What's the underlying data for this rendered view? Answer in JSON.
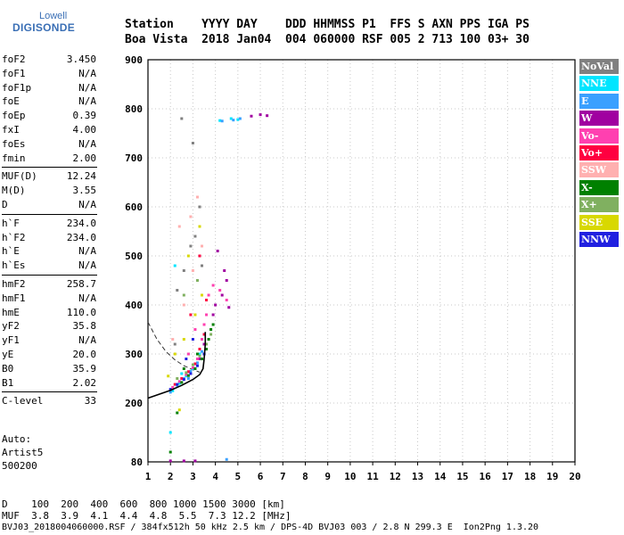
{
  "logo": {
    "line1": "Lowell",
    "line2": "DIGISONDE"
  },
  "header": {
    "line1": "Station    YYYY DAY    DDD HHMMSS P1  FFS S AXN PPS IGA PS",
    "line2": "Boa Vista  2018 Jan04  004 060000 RSF 005 2 713 100 03+ 30"
  },
  "params_group1": [
    {
      "name": "foF2",
      "value": "3.450"
    },
    {
      "name": "foF1",
      "value": "N/A"
    },
    {
      "name": "foF1p",
      "value": "N/A"
    },
    {
      "name": "foE",
      "value": "N/A"
    },
    {
      "name": "foEp",
      "value": "0.39"
    },
    {
      "name": "fxI",
      "value": "4.00"
    },
    {
      "name": "foEs",
      "value": "N/A"
    },
    {
      "name": "fmin",
      "value": "2.00"
    }
  ],
  "params_group2": [
    {
      "name": "MUF(D)",
      "value": "12.24"
    },
    {
      "name": "M(D)",
      "value": "3.55"
    },
    {
      "name": "D",
      "value": "N/A"
    }
  ],
  "params_group3": [
    {
      "name": "h`F",
      "value": "234.0"
    },
    {
      "name": "h`F2",
      "value": "234.0"
    },
    {
      "name": "h`E",
      "value": "N/A"
    },
    {
      "name": "h`Es",
      "value": "N/A"
    }
  ],
  "params_group4": [
    {
      "name": "hmF2",
      "value": "258.7"
    },
    {
      "name": "hmF1",
      "value": "N/A"
    },
    {
      "name": "hmE",
      "value": "110.0"
    },
    {
      "name": "yF2",
      "value": "35.8"
    },
    {
      "name": "yF1",
      "value": "N/A"
    },
    {
      "name": "yE",
      "value": "20.0"
    },
    {
      "name": "B0",
      "value": "35.9"
    },
    {
      "name": "B1",
      "value": "2.02"
    }
  ],
  "params_group5": [
    {
      "name": "C-level",
      "value": "33"
    }
  ],
  "info": {
    "line1": "Auto:",
    "line2": "Artist5",
    "line3": "500200"
  },
  "legend": [
    {
      "label": "NoVal",
      "color": "#808080"
    },
    {
      "label": "NNE",
      "color": "#00e5ff"
    },
    {
      "label": "E",
      "color": "#3aa0ff"
    },
    {
      "label": "W",
      "color": "#a000a0"
    },
    {
      "label": "Vo-",
      "color": "#ff40b0"
    },
    {
      "label": "Vo+",
      "color": "#ff0040"
    },
    {
      "label": "SSW",
      "color": "#ffb0b0"
    },
    {
      "label": "X-",
      "color": "#008000"
    },
    {
      "label": "X+",
      "color": "#80b060"
    },
    {
      "label": "SSE",
      "color": "#d8d800"
    },
    {
      "label": "NNW",
      "color": "#2020e0"
    }
  ],
  "footer": {
    "line1": "D    100  200  400  600  800 1000 1500 3000 [km]",
    "line2": "MUF  3.8  3.9  4.1  4.4  4.8  5.5  7.3 12.2 [MHz]",
    "line3": "BVJ03_2018004060000.RSF / 384fx512h 50 kHz 2.5 km / DPS-4D BVJ03 003 / 2.8 N 299.3 E  Ion2Png 1.3.20"
  },
  "chart_data": {
    "type": "scatter",
    "xlabel": "",
    "ylabel": "",
    "xlim": [
      1,
      20
    ],
    "ylim": [
      80,
      900
    ],
    "x_ticks": [
      1,
      2,
      3,
      4,
      5,
      6,
      7,
      8,
      9,
      10,
      11,
      12,
      13,
      14,
      15,
      16,
      17,
      18,
      19,
      20
    ],
    "y_ticks": [
      80,
      200,
      300,
      400,
      500,
      600,
      700,
      800,
      900
    ],
    "grid": true,
    "legend_position": "right",
    "series": [
      {
        "name": "NoVal",
        "color": "#808080",
        "points": [
          [
            2.3,
            430
          ],
          [
            2.6,
            470
          ],
          [
            2.9,
            520
          ],
          [
            3.1,
            540
          ],
          [
            3.3,
            600
          ],
          [
            2.5,
            780
          ],
          [
            3.0,
            730
          ],
          [
            2.2,
            320
          ],
          [
            2.8,
            300
          ],
          [
            3.4,
            480
          ]
        ]
      },
      {
        "name": "NNE",
        "color": "#00e5ff",
        "points": [
          [
            2.1,
            225
          ],
          [
            2.4,
            240
          ],
          [
            2.7,
            255
          ],
          [
            3.0,
            270
          ],
          [
            3.3,
            300
          ],
          [
            3.5,
            320
          ],
          [
            4.2,
            776
          ],
          [
            4.7,
            780
          ],
          [
            5.0,
            778
          ],
          [
            2.5,
            260
          ],
          [
            2.2,
            480
          ],
          [
            2.0,
            140
          ]
        ]
      },
      {
        "name": "E",
        "color": "#3aa0ff",
        "points": [
          [
            4.3,
            775
          ],
          [
            4.8,
            777
          ],
          [
            5.1,
            780
          ],
          [
            2.0,
            222
          ],
          [
            2.3,
            236
          ],
          [
            2.6,
            250
          ],
          [
            2.9,
            265
          ],
          [
            3.2,
            282
          ],
          [
            3.4,
            305
          ],
          [
            2.8,
            250
          ],
          [
            4.5,
            85
          ]
        ]
      },
      {
        "name": "W",
        "color": "#a000a0",
        "points": [
          [
            5.6,
            785
          ],
          [
            6.0,
            788
          ],
          [
            6.3,
            786
          ],
          [
            4.0,
            400
          ],
          [
            4.3,
            420
          ],
          [
            4.5,
            450
          ],
          [
            4.6,
            395
          ],
          [
            4.1,
            510
          ],
          [
            3.9,
            380
          ],
          [
            4.4,
            470
          ],
          [
            3.5,
            320
          ],
          [
            3.3,
            290
          ],
          [
            2.0,
            82
          ],
          [
            2.6,
            82
          ],
          [
            3.1,
            82
          ]
        ]
      },
      {
        "name": "Vo-",
        "color": "#ff40b0",
        "points": [
          [
            2.1,
            232
          ],
          [
            2.4,
            244
          ],
          [
            2.7,
            258
          ],
          [
            3.0,
            272
          ],
          [
            3.2,
            290
          ],
          [
            3.4,
            330
          ],
          [
            3.5,
            360
          ],
          [
            3.6,
            380
          ],
          [
            3.7,
            420
          ],
          [
            3.9,
            440
          ],
          [
            4.2,
            430
          ],
          [
            4.5,
            410
          ],
          [
            2.8,
            300
          ],
          [
            3.1,
            350
          ]
        ]
      },
      {
        "name": "Vo+",
        "color": "#ff0040",
        "points": [
          [
            2.2,
            238
          ],
          [
            2.5,
            250
          ],
          [
            2.8,
            264
          ],
          [
            3.1,
            280
          ],
          [
            3.3,
            310
          ],
          [
            3.5,
            340
          ],
          [
            3.6,
            410
          ],
          [
            3.3,
            500
          ],
          [
            2.9,
            380
          ]
        ]
      },
      {
        "name": "SSW",
        "color": "#ffb0b0",
        "points": [
          [
            2.4,
            560
          ],
          [
            2.9,
            580
          ],
          [
            3.2,
            620
          ],
          [
            2.1,
            330
          ],
          [
            2.6,
            400
          ],
          [
            3.0,
            470
          ],
          [
            3.4,
            520
          ]
        ]
      },
      {
        "name": "X-",
        "color": "#008000",
        "points": [
          [
            2.5,
            242
          ],
          [
            2.8,
            256
          ],
          [
            3.1,
            270
          ],
          [
            3.4,
            290
          ],
          [
            3.6,
            310
          ],
          [
            3.7,
            330
          ],
          [
            3.8,
            350
          ],
          [
            3.9,
            360
          ],
          [
            3.2,
            300
          ],
          [
            2.6,
            270
          ],
          [
            2.0,
            100
          ],
          [
            2.3,
            180
          ]
        ]
      },
      {
        "name": "X+",
        "color": "#80b060",
        "points": [
          [
            2.3,
            250
          ],
          [
            2.7,
            262
          ],
          [
            3.0,
            278
          ],
          [
            3.3,
            296
          ],
          [
            3.6,
            320
          ],
          [
            3.8,
            340
          ],
          [
            3.2,
            450
          ],
          [
            2.6,
            420
          ]
        ]
      },
      {
        "name": "SSE",
        "color": "#d8d800",
        "points": [
          [
            2.2,
            300
          ],
          [
            2.6,
            330
          ],
          [
            3.1,
            380
          ],
          [
            3.4,
            420
          ],
          [
            2.8,
            500
          ],
          [
            3.3,
            560
          ],
          [
            1.9,
            255
          ],
          [
            2.4,
            186
          ]
        ]
      },
      {
        "name": "NNW",
        "color": "#2020e0",
        "points": [
          [
            2.0,
            228
          ],
          [
            2.3,
            238
          ],
          [
            2.6,
            248
          ],
          [
            2.9,
            260
          ],
          [
            3.2,
            276
          ],
          [
            3.5,
            300
          ],
          [
            3.0,
            330
          ],
          [
            2.7,
            290
          ]
        ]
      }
    ],
    "profile_curve": [
      [
        1.0,
        210
      ],
      [
        1.5,
        218
      ],
      [
        2.0,
        226
      ],
      [
        2.5,
        236
      ],
      [
        3.0,
        248
      ],
      [
        3.3,
        258
      ],
      [
        3.45,
        270
      ],
      [
        3.5,
        290
      ],
      [
        3.55,
        320
      ],
      [
        3.55,
        345
      ]
    ],
    "dashed_curve": [
      [
        1.0,
        365
      ],
      [
        1.4,
        330
      ],
      [
        1.8,
        305
      ],
      [
        2.2,
        288
      ],
      [
        2.6,
        276
      ],
      [
        3.0,
        268
      ],
      [
        3.3,
        263
      ]
    ]
  }
}
